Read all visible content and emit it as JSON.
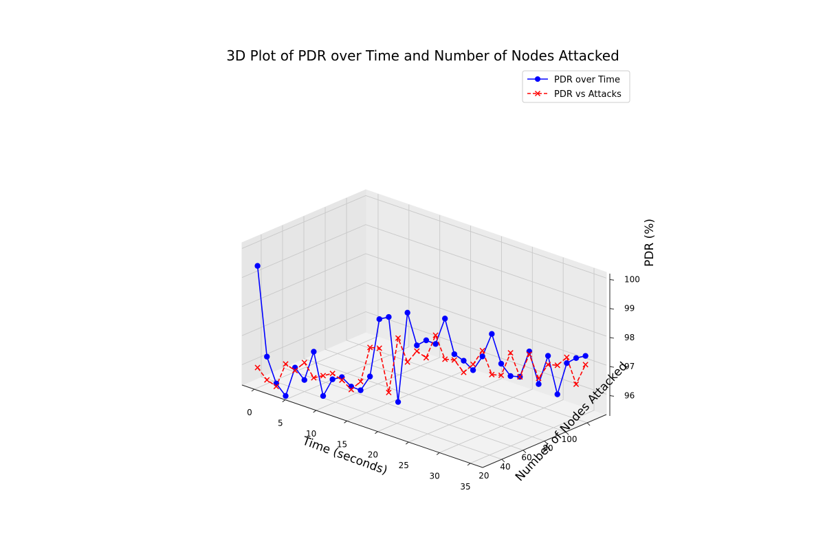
{
  "chart_data": {
    "type": "line3d",
    "title": "3D Plot of PDR over Time and Number of Nodes Attacked",
    "xlabel": "Time (seconds)",
    "ylabel": "Number of Nodes Attacked",
    "zlabel": "PDR (%)",
    "xlim": [
      -2,
      37
    ],
    "ylim": [
      2,
      118
    ],
    "zlim": [
      95.3,
      100.2
    ],
    "x_ticks": [
      0,
      5,
      10,
      15,
      20,
      25,
      30,
      35
    ],
    "y_ticks": [
      20,
      40,
      60,
      80,
      100
    ],
    "z_ticks": [
      96,
      97,
      98,
      99,
      100
    ],
    "legend": {
      "position": "top-right",
      "entries": [
        "PDR over Time",
        "PDR vs Attacks"
      ]
    },
    "grid": true,
    "series": [
      {
        "name": "PDR over Time",
        "color": "#0000ff",
        "linestyle": "solid",
        "marker": "circle",
        "x": [
          0,
          1,
          2,
          3,
          4,
          5,
          6,
          7,
          8,
          9,
          10,
          11,
          12,
          13,
          14,
          15,
          16,
          17,
          18,
          19,
          20,
          21,
          22,
          23,
          24,
          25,
          26,
          27,
          28,
          29,
          30,
          31,
          32,
          33,
          34,
          35
        ],
        "y": [
          5,
          8,
          11,
          14,
          17,
          20,
          23,
          26,
          29,
          32,
          35,
          38,
          41,
          44,
          47,
          50,
          53,
          56,
          59,
          62,
          65,
          68,
          71,
          74,
          77,
          80,
          83,
          86,
          89,
          92,
          95,
          98,
          101,
          104,
          107,
          110
        ],
        "z": [
          99.5,
          96.4,
          95.5,
          95.1,
          96.1,
          95.7,
          96.7,
          95.2,
          95.8,
          95.9,
          95.6,
          95.5,
          96.0,
          98.0,
          98.1,
          95.2,
          98.3,
          97.2,
          97.4,
          97.3,
          98.2,
          97.0,
          96.8,
          96.5,
          97.0,
          97.8,
          96.8,
          96.4,
          96.4,
          97.3,
          96.2,
          97.2,
          95.9,
          97.0,
          97.2,
          97.3
        ]
      },
      {
        "name": "PDR vs Attacks",
        "color": "#ff0000",
        "linestyle": "dashed",
        "marker": "x",
        "x": [
          0,
          1,
          2,
          3,
          4,
          5,
          6,
          7,
          8,
          9,
          10,
          11,
          12,
          13,
          14,
          15,
          16,
          17,
          18,
          19,
          20,
          21,
          22,
          23,
          24,
          25,
          26,
          27,
          28,
          29,
          30,
          31,
          32,
          33,
          34,
          35
        ],
        "y": [
          5,
          8,
          11,
          14,
          17,
          20,
          23,
          26,
          29,
          32,
          35,
          38,
          41,
          44,
          47,
          50,
          53,
          56,
          59,
          62,
          65,
          68,
          71,
          74,
          77,
          80,
          83,
          86,
          89,
          92,
          95,
          98,
          101,
          104,
          107,
          110
        ],
        "z": [
          96.0,
          95.6,
          95.4,
          96.2,
          96.0,
          96.3,
          95.8,
          95.9,
          96.0,
          95.8,
          95.5,
          95.8,
          97.0,
          97.0,
          95.5,
          97.4,
          96.6,
          97.0,
          96.8,
          97.6,
          96.8,
          96.8,
          96.4,
          96.7,
          97.2,
          96.4,
          96.4,
          97.2,
          96.4,
          97.2,
          96.4,
          96.9,
          96.9,
          97.2,
          96.3,
          97.0
        ]
      }
    ]
  }
}
